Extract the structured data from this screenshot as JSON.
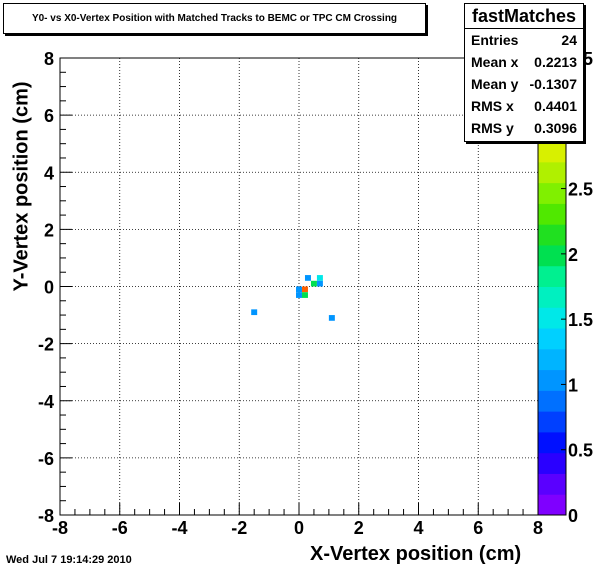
{
  "title": "Y0- vs X0-Vertex Position with Matched Tracks to BEMC or TPC CM Crossing",
  "stats": {
    "name": "fastMatches",
    "rows": [
      {
        "label": "Entries",
        "value": "24"
      },
      {
        "label": "Mean x",
        "value": "0.2213"
      },
      {
        "label": "Mean y",
        "value": "-0.1307"
      },
      {
        "label": "RMS x",
        "value": "0.4401"
      },
      {
        "label": "RMS y",
        "value": "0.3096"
      }
    ]
  },
  "timestamp": "Wed Jul  7 19:14:29 2010",
  "chart_data": {
    "type": "heatmap",
    "xlabel": "X-Vertex position (cm)",
    "ylabel": "Y-Vertex position (cm)",
    "xlim": [
      -8,
      8
    ],
    "ylim": [
      -8,
      8
    ],
    "xticks": [
      "-8",
      "-6",
      "-4",
      "-2",
      "0",
      "2",
      "4",
      "6",
      "8"
    ],
    "yticks": [
      "-8",
      "-6",
      "-4",
      "-2",
      "0",
      "2",
      "4",
      "6",
      "8"
    ],
    "zlim": [
      0,
      3.5
    ],
    "zticks": [
      "0",
      "0.5",
      "1",
      "1.5",
      "2",
      "2.5",
      "3",
      "3.5"
    ],
    "grid": true,
    "bin_width": 0.2,
    "bins": [
      {
        "x": -1.5,
        "y": -0.9,
        "z": 1
      },
      {
        "x": 1.1,
        "y": -1.1,
        "z": 1
      },
      {
        "x": 0.0,
        "y": -0.1,
        "z": 1
      },
      {
        "x": 0.0,
        "y": -0.3,
        "z": 1
      },
      {
        "x": 0.2,
        "y": -0.1,
        "z": 3.5
      },
      {
        "x": 0.2,
        "y": -0.3,
        "z": 2
      },
      {
        "x": 0.3,
        "y": 0.3,
        "z": 1
      },
      {
        "x": 0.5,
        "y": 0.1,
        "z": 2
      },
      {
        "x": 0.7,
        "y": 0.3,
        "z": 1.5
      },
      {
        "x": 0.7,
        "y": 0.1,
        "z": 1
      }
    ],
    "palette": [
      "#7f00ff",
      "#5a00ff",
      "#2a00ff",
      "#0010ff",
      "#0040ff",
      "#0070ff",
      "#0095ff",
      "#00b4ff",
      "#00d0ff",
      "#00e8e8",
      "#00f0c0",
      "#00f090",
      "#00e050",
      "#20e020",
      "#50e800",
      "#80f000",
      "#b0f000",
      "#d8f000",
      "#f8f000",
      "#ffd000",
      "#ffa000",
      "#ff6000"
    ]
  }
}
